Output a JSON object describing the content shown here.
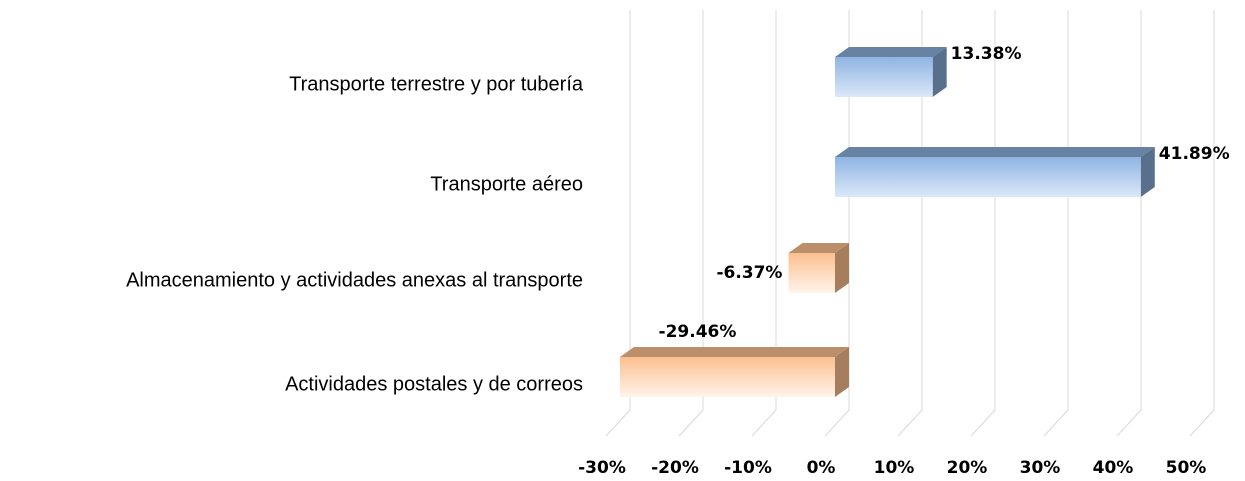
{
  "chart_data": {
    "type": "bar",
    "orientation": "horizontal",
    "categories": [
      "Transporte terrestre y por tubería",
      "Transporte aéreo",
      "Almacenamiento y actividades anexas al transporte",
      "Actividades postales y de correos"
    ],
    "values": [
      13.38,
      41.89,
      -6.37,
      -29.46
    ],
    "value_labels": [
      "13.38%",
      "41.89%",
      "-6.37%",
      "-29.46%"
    ],
    "positive_color": "#8fb4e3",
    "negative_color": "#fbbf8f",
    "xlim": [
      -30,
      50
    ],
    "xticks": [
      {
        "value": -30,
        "label": "-30%"
      },
      {
        "value": -20,
        "label": "-20%"
      },
      {
        "value": -10,
        "label": "-10%"
      },
      {
        "value": 0,
        "label": "0%"
      },
      {
        "value": 10,
        "label": "10%"
      },
      {
        "value": 20,
        "label": "20%"
      },
      {
        "value": 30,
        "label": "30%"
      },
      {
        "value": 40,
        "label": "40%"
      },
      {
        "value": 50,
        "label": "50%"
      }
    ],
    "grid": true
  }
}
